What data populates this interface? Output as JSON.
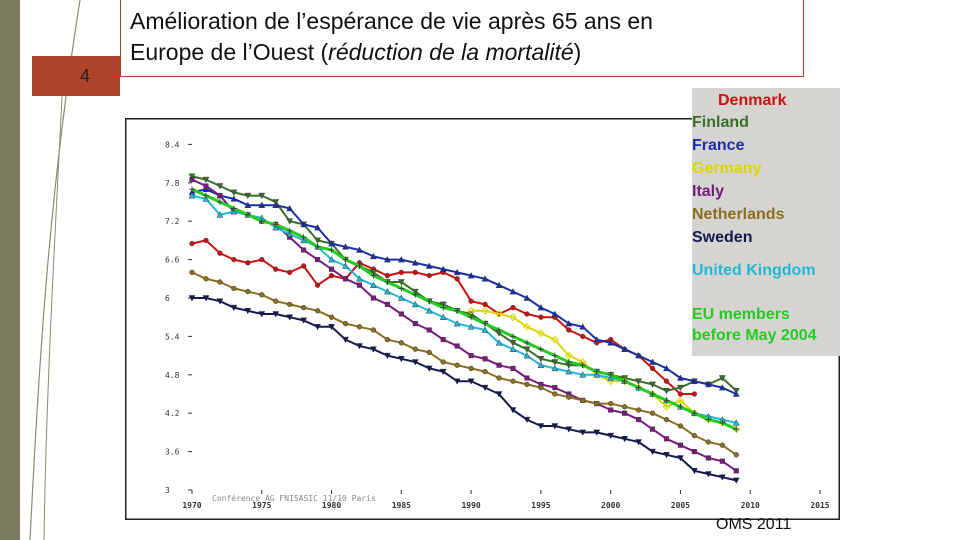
{
  "slide": {
    "page_number": "4",
    "title_line1": "Amélioration de l’espérance de vie après 65 ans en",
    "title_line2_plain": "Europe de l’Ouest (",
    "title_line2_italic": "réduction de la mortalité",
    "title_line2_end": ")",
    "source": "OMS 2011",
    "watermark": "Conférence AG FNISASIC 11/10 Paris"
  },
  "colors": {
    "accent": "#b0442a",
    "sidebar": "#7d7b5f"
  },
  "chart_data": {
    "type": "line",
    "title": "",
    "xlabel": "",
    "ylabel": "",
    "xlim": [
      1970,
      2015
    ],
    "ylim": [
      3,
      8.5
    ],
    "x_ticks": [
      1970,
      1975,
      1980,
      1985,
      1990,
      1995,
      2000,
      2005,
      2010,
      2015
    ],
    "x_tick_labels": [
      "1970",
      "1975",
      "1980",
      "1985",
      "1990",
      "1995",
      "2000",
      "2005",
      "2010",
      "2015"
    ],
    "y_ticks": [
      3,
      3.6,
      4.2,
      4.8,
      5.4,
      6,
      6.6,
      7.2,
      7.8,
      8.4
    ],
    "y_tick_labels": [
      "3",
      "3.6",
      "4.2",
      "4.8",
      "5.4",
      "6",
      "6.6",
      "7.2",
      "7.8",
      "8.4"
    ],
    "grid": false,
    "legend_position": "right",
    "series": [
      {
        "name": "Denmark",
        "color": "#cc1111",
        "marker": "circle",
        "x": [
          1970,
          1971,
          1972,
          1973,
          1974,
          1975,
          1976,
          1977,
          1978,
          1979,
          1980,
          1981,
          1982,
          1983,
          1984,
          1985,
          1986,
          1987,
          1988,
          1989,
          1990,
          1991,
          1992,
          1993,
          1994,
          1995,
          1996,
          1997,
          1998,
          1999,
          2000,
          2001,
          2002,
          2003,
          2004,
          2005,
          2006
        ],
        "y": [
          6.85,
          6.9,
          6.7,
          6.6,
          6.55,
          6.6,
          6.45,
          6.4,
          6.5,
          6.2,
          6.35,
          6.3,
          6.55,
          6.45,
          6.35,
          6.4,
          6.4,
          6.35,
          6.4,
          6.3,
          5.95,
          5.9,
          5.75,
          5.85,
          5.75,
          5.7,
          5.7,
          5.5,
          5.4,
          5.3,
          5.35,
          5.2,
          5.1,
          4.9,
          4.7,
          4.5,
          4.5
        ]
      },
      {
        "name": "Finland",
        "color": "#3b6e2a",
        "marker": "triangle-down",
        "x": [
          1970,
          1971,
          1972,
          1973,
          1974,
          1975,
          1976,
          1977,
          1978,
          1979,
          1980,
          1981,
          1982,
          1983,
          1984,
          1985,
          1986,
          1987,
          1988,
          1989,
          1990,
          1991,
          1992,
          1993,
          1994,
          1995,
          1996,
          1997,
          1998,
          1999,
          2000,
          2001,
          2002,
          2003,
          2004,
          2005,
          2006,
          2007,
          2008,
          2009
        ],
        "y": [
          7.9,
          7.85,
          7.75,
          7.65,
          7.6,
          7.6,
          7.5,
          7.2,
          7.15,
          6.9,
          6.85,
          6.6,
          6.5,
          6.4,
          6.25,
          6.25,
          6.1,
          5.95,
          5.9,
          5.8,
          5.75,
          5.6,
          5.45,
          5.3,
          5.2,
          5.05,
          5.0,
          4.95,
          4.95,
          4.85,
          4.8,
          4.75,
          4.7,
          4.65,
          4.55,
          4.6,
          4.7,
          4.65,
          4.75,
          4.55
        ]
      },
      {
        "name": "France",
        "color": "#1a2da8",
        "marker": "triangle-up",
        "x": [
          1970,
          1971,
          1972,
          1973,
          1974,
          1975,
          1976,
          1977,
          1978,
          1979,
          1980,
          1981,
          1982,
          1983,
          1984,
          1985,
          1986,
          1987,
          1988,
          1989,
          1990,
          1991,
          1992,
          1993,
          1994,
          1995,
          1996,
          1997,
          1998,
          1999,
          2000,
          2001,
          2002,
          2003,
          2004,
          2005,
          2006,
          2007,
          2008,
          2009
        ],
        "y": [
          7.65,
          7.7,
          7.6,
          7.55,
          7.45,
          7.45,
          7.45,
          7.4,
          7.15,
          7.1,
          6.85,
          6.8,
          6.75,
          6.65,
          6.6,
          6.6,
          6.55,
          6.5,
          6.45,
          6.4,
          6.35,
          6.3,
          6.2,
          6.1,
          6.0,
          5.85,
          5.75,
          5.6,
          5.55,
          5.35,
          5.3,
          5.2,
          5.1,
          5.0,
          4.9,
          4.75,
          4.7,
          4.65,
          4.6,
          4.5
        ]
      },
      {
        "name": "Germany",
        "color": "#d8d800",
        "marker": "diamond",
        "x": [
          1990,
          1991,
          1992,
          1993,
          1994,
          1995,
          1996,
          1997,
          1998,
          1999,
          2000,
          2001,
          2002,
          2003,
          2004,
          2005,
          2006,
          2007,
          2008,
          2009
        ],
        "y": [
          5.8,
          5.8,
          5.75,
          5.7,
          5.55,
          5.45,
          5.35,
          5.1,
          5.0,
          4.8,
          4.7,
          4.7,
          4.6,
          4.5,
          4.3,
          4.4,
          4.2,
          4.1,
          4.05,
          3.95
        ]
      },
      {
        "name": "Italy",
        "color": "#7a1a80",
        "marker": "square",
        "x": [
          1970,
          1971,
          1972,
          1973,
          1974,
          1975,
          1976,
          1977,
          1978,
          1979,
          1980,
          1981,
          1982,
          1983,
          1984,
          1985,
          1986,
          1987,
          1988,
          1989,
          1990,
          1991,
          1992,
          1993,
          1994,
          1995,
          1996,
          1997,
          1998,
          1999,
          2000,
          2001,
          2002,
          2003,
          2004,
          2005,
          2006,
          2007,
          2008,
          2009
        ],
        "y": [
          7.85,
          7.75,
          7.6,
          7.35,
          7.3,
          7.2,
          7.15,
          6.95,
          6.75,
          6.6,
          6.45,
          6.3,
          6.2,
          6.0,
          5.9,
          5.75,
          5.6,
          5.5,
          5.35,
          5.25,
          5.1,
          5.05,
          4.95,
          4.9,
          4.75,
          4.65,
          4.6,
          4.5,
          4.4,
          4.35,
          4.25,
          4.2,
          4.1,
          3.95,
          3.8,
          3.7,
          3.6,
          3.5,
          3.45,
          3.3
        ]
      },
      {
        "name": "Netherlands",
        "color": "#8a7020",
        "marker": "circle",
        "x": [
          1970,
          1971,
          1972,
          1973,
          1974,
          1975,
          1976,
          1977,
          1978,
          1979,
          1980,
          1981,
          1982,
          1983,
          1984,
          1985,
          1986,
          1987,
          1988,
          1989,
          1990,
          1991,
          1992,
          1993,
          1994,
          1995,
          1996,
          1997,
          1998,
          1999,
          2000,
          2001,
          2002,
          2003,
          2004,
          2005,
          2006,
          2007,
          2008,
          2009
        ],
        "y": [
          6.4,
          6.3,
          6.25,
          6.15,
          6.1,
          6.05,
          5.95,
          5.9,
          5.85,
          5.8,
          5.7,
          5.6,
          5.55,
          5.5,
          5.35,
          5.3,
          5.2,
          5.15,
          5.0,
          4.95,
          4.9,
          4.85,
          4.75,
          4.7,
          4.65,
          4.6,
          4.5,
          4.45,
          4.4,
          4.35,
          4.35,
          4.3,
          4.25,
          4.2,
          4.1,
          4.0,
          3.85,
          3.75,
          3.7,
          3.55
        ]
      },
      {
        "name": "Sweden",
        "color": "#141850",
        "marker": "triangle-down",
        "x": [
          1970,
          1971,
          1972,
          1973,
          1974,
          1975,
          1976,
          1977,
          1978,
          1979,
          1980,
          1981,
          1982,
          1983,
          1984,
          1985,
          1986,
          1987,
          1988,
          1989,
          1990,
          1991,
          1992,
          1993,
          1994,
          1995,
          1996,
          1997,
          1998,
          1999,
          2000,
          2001,
          2002,
          2003,
          2004,
          2005,
          2006,
          2007,
          2008,
          2009
        ],
        "y": [
          6.0,
          6.0,
          5.95,
          5.85,
          5.8,
          5.75,
          5.75,
          5.7,
          5.65,
          5.55,
          5.55,
          5.35,
          5.25,
          5.2,
          5.1,
          5.05,
          5.0,
          4.9,
          4.85,
          4.7,
          4.7,
          4.6,
          4.5,
          4.25,
          4.1,
          4.0,
          4.0,
          3.95,
          3.9,
          3.9,
          3.85,
          3.8,
          3.75,
          3.6,
          3.55,
          3.5,
          3.3,
          3.25,
          3.2,
          3.15
        ]
      },
      {
        "name": "United Kingdom",
        "color": "#22b8d8",
        "marker": "triangle-up",
        "x": [
          1970,
          1971,
          1972,
          1973,
          1974,
          1975,
          1976,
          1977,
          1978,
          1979,
          1980,
          1981,
          1982,
          1983,
          1984,
          1985,
          1986,
          1987,
          1988,
          1989,
          1990,
          1991,
          1992,
          1993,
          1994,
          1995,
          1996,
          1997,
          1998,
          1999,
          2000,
          2001,
          2002,
          2003,
          2004,
          2005,
          2006,
          2007,
          2008,
          2009
        ],
        "y": [
          7.6,
          7.55,
          7.3,
          7.35,
          7.3,
          7.25,
          7.1,
          7.0,
          6.9,
          6.8,
          6.6,
          6.5,
          6.3,
          6.2,
          6.1,
          6.0,
          5.9,
          5.8,
          5.7,
          5.6,
          5.55,
          5.5,
          5.3,
          5.2,
          5.1,
          4.95,
          4.9,
          4.85,
          4.8,
          4.8,
          4.75,
          4.7,
          4.6,
          4.5,
          4.4,
          4.3,
          4.2,
          4.15,
          4.1,
          4.05
        ]
      },
      {
        "name": "EU members before May 2004",
        "color": "#22cc22",
        "marker": "plus",
        "x": [
          1970,
          1971,
          1972,
          1973,
          1974,
          1975,
          1976,
          1977,
          1978,
          1979,
          1980,
          1981,
          1982,
          1983,
          1984,
          1985,
          1986,
          1987,
          1988,
          1989,
          1990,
          1991,
          1992,
          1993,
          1994,
          1995,
          1996,
          1997,
          1998,
          1999,
          2000,
          2001,
          2002,
          2003,
          2004,
          2005,
          2006,
          2007,
          2008,
          2009
        ],
        "y": [
          7.7,
          7.6,
          7.5,
          7.4,
          7.3,
          7.2,
          7.15,
          7.05,
          6.95,
          6.8,
          6.75,
          6.6,
          6.5,
          6.35,
          6.25,
          6.15,
          6.05,
          5.95,
          5.85,
          5.8,
          5.7,
          5.6,
          5.5,
          5.4,
          5.3,
          5.2,
          5.1,
          5.0,
          4.95,
          4.85,
          4.8,
          4.7,
          4.6,
          4.5,
          4.4,
          4.3,
          4.2,
          4.1,
          4.05,
          3.95
        ]
      }
    ]
  },
  "legend": {
    "items": [
      {
        "label": "Denmark",
        "color": "#cc1111"
      },
      {
        "label": "Finland",
        "color": "#3b6e2a"
      },
      {
        "label": "France",
        "color": "#1a2da8"
      },
      {
        "label": "Germany",
        "color": "#d8d800"
      },
      {
        "label": "Italy",
        "color": "#7a1a80"
      },
      {
        "label": "Netherlands",
        "color": "#8a7020"
      },
      {
        "label": "Sweden",
        "color": "#141850"
      },
      {
        "label": "United Kingdom",
        "color": "#22b8d8"
      },
      {
        "label": "EU members",
        "color": "#22cc22"
      },
      {
        "label": "before May 2004",
        "color": "#22cc22"
      }
    ]
  }
}
